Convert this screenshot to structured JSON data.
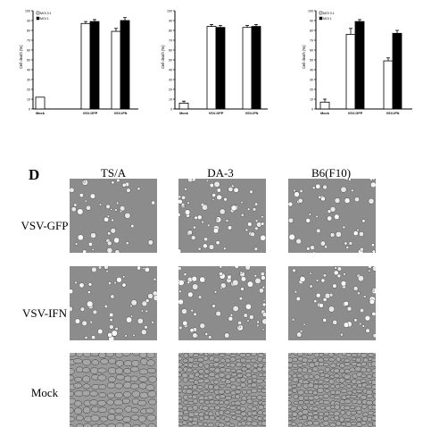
{
  "chart_data": [
    {
      "type": "bar",
      "categories": [
        "Mock",
        "VSV-GFP",
        "VSV-IFN"
      ],
      "series": [
        {
          "name": "MOI 0.1",
          "values": [
            12,
            87,
            79
          ],
          "errors": [
            0,
            2,
            3
          ]
        },
        {
          "name": "MOI 1",
          "values": [
            null,
            89,
            90
          ],
          "errors": [
            0,
            2,
            3
          ]
        }
      ],
      "ylabel": "Cell death (%)",
      "ylim": [
        0,
        100
      ],
      "yticks": [
        0,
        10,
        20,
        30,
        40,
        50,
        60,
        70,
        80,
        90,
        100
      ],
      "legend": "top-left"
    },
    {
      "type": "bar",
      "categories": [
        "Mock",
        "VSV-GFP",
        "VSV-IFN"
      ],
      "series": [
        {
          "name": "",
          "values": [
            6,
            84,
            83
          ],
          "errors": [
            2,
            2,
            2
          ]
        },
        {
          "name": "",
          "values": [
            null,
            83,
            84
          ],
          "errors": [
            0,
            2,
            2
          ]
        }
      ],
      "ylabel": "Cell death (%)",
      "ylim": [
        0,
        100
      ],
      "yticks": [
        0,
        10,
        20,
        30,
        40,
        50,
        60,
        70,
        80,
        90,
        100
      ]
    },
    {
      "type": "bar",
      "categories": [
        "Mock",
        "VSV-GFP",
        "VSV-IFN"
      ],
      "series": [
        {
          "name": "MOI 0.1",
          "values": [
            7,
            76,
            49
          ],
          "errors": [
            3,
            6,
            3
          ]
        },
        {
          "name": "MOI 1",
          "values": [
            null,
            89,
            77
          ],
          "errors": [
            0,
            2,
            3
          ]
        }
      ],
      "ylabel": "Cell death (%)",
      "ylim": [
        0,
        100
      ],
      "yticks": [
        0,
        10,
        20,
        30,
        40,
        50,
        60,
        70,
        80,
        90,
        100
      ],
      "legend": "top-left"
    }
  ],
  "figure": {
    "panel_letter": "D",
    "columns": [
      "TS/A",
      "DA-3",
      "B6(F10)"
    ],
    "rows": [
      "VSV-GFP",
      "VSV-IFN",
      "Mock"
    ],
    "colors": {
      "open_bar": "#ffffff",
      "filled_bar": "#000000",
      "micrograph_base": "#8a8a8a"
    }
  }
}
